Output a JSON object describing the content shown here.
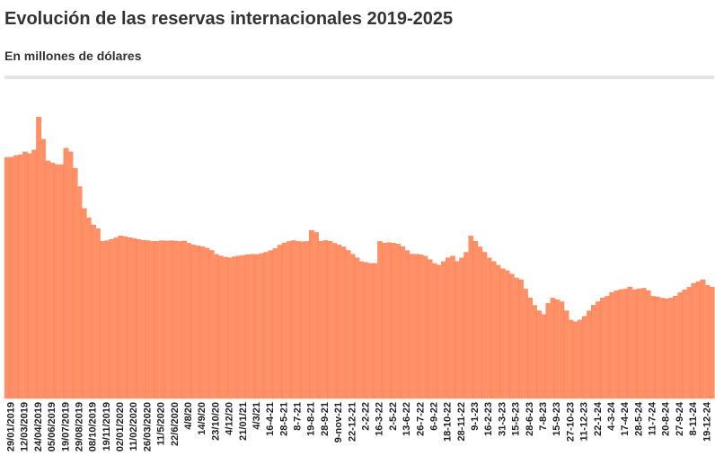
{
  "chart_data": {
    "type": "bar",
    "title": "Evolución de las reservas internacionales 2019-2025",
    "subtitle": "En millones de dólares",
    "color": "#ff8f66",
    "ylim": [
      0,
      80000
    ],
    "categories": [
      null,
      "29/01/2019",
      null,
      null,
      "12/03/2019",
      null,
      null,
      "24/04/2019",
      null,
      null,
      "05/06/2019",
      null,
      null,
      "19/07/2019",
      null,
      null,
      "29/08/2019",
      null,
      null,
      "08/10/2019",
      null,
      null,
      "19/11/2019",
      null,
      null,
      "02/01/2020",
      null,
      null,
      "11/02/2020",
      null,
      null,
      "26/03/2020",
      null,
      null,
      "11/5/2020",
      null,
      null,
      "22/6/2020",
      null,
      null,
      "4/8/20",
      null,
      null,
      "14/9/20",
      null,
      null,
      "23/10/20",
      null,
      null,
      "4/12/20",
      null,
      null,
      "21/01/21",
      null,
      null,
      "4/3/21",
      null,
      null,
      "16-4-21",
      null,
      null,
      "28-5-21",
      null,
      null,
      "8-7-21",
      null,
      null,
      "19-8-21",
      null,
      null,
      "28-9-21",
      null,
      null,
      "9-nov-21",
      null,
      null,
      "22-12-21",
      null,
      null,
      "2-2-22",
      null,
      null,
      "16-3-22",
      null,
      null,
      "2-5-22",
      null,
      null,
      "13-6-22",
      null,
      null,
      "26-7-22",
      null,
      null,
      "6-9-22",
      null,
      null,
      "18-10-22",
      null,
      null,
      "28-11-22",
      null,
      null,
      "9-1-23",
      null,
      null,
      "16-2-23",
      null,
      null,
      "31-3-23",
      null,
      null,
      "15-5-23",
      null,
      null,
      "28-6-23",
      null,
      null,
      "7-8-23",
      null,
      null,
      "15-9-23",
      null,
      null,
      "27-10-23",
      null,
      null,
      "11-12-23",
      null,
      null,
      "22-1-24",
      null,
      null,
      "4-3-24",
      null,
      null,
      "17-4-24",
      null,
      null,
      "28-5-24",
      null,
      null,
      "11-7-24",
      null,
      null,
      "20-8-24",
      null,
      null,
      "27-9-24",
      null,
      null,
      "8-11-24",
      null,
      null,
      "19-12-24",
      null
    ],
    "values": [
      66000,
      66000,
      66500,
      66700,
      67500,
      67000,
      68000,
      77000,
      71000,
      65000,
      64500,
      64000,
      64000,
      68500,
      67500,
      63000,
      58000,
      52000,
      49500,
      47500,
      46500,
      43000,
      43200,
      43500,
      44000,
      44500,
      44300,
      44000,
      43800,
      43500,
      43300,
      43200,
      43000,
      43000,
      43200,
      43100,
      43200,
      43100,
      43000,
      43100,
      42500,
      42000,
      41800,
      41500,
      41200,
      40500,
      39500,
      39000,
      38700,
      38500,
      38800,
      39000,
      39200,
      39300,
      39500,
      39400,
      39700,
      40000,
      40500,
      41000,
      42000,
      42500,
      43000,
      43200,
      43000,
      42900,
      43000,
      46000,
      45500,
      43000,
      43300,
      43000,
      42500,
      42000,
      41500,
      40500,
      39500,
      38500,
      37500,
      37200,
      37000,
      37000,
      43000,
      42500,
      42700,
      42500,
      42300,
      41500,
      40500,
      39500,
      39500,
      39300,
      39000,
      38000,
      37000,
      36500,
      37500,
      38500,
      39000,
      37500,
      38500,
      40000,
      44500,
      43000,
      41500,
      40000,
      38500,
      37500,
      36500,
      35500,
      35000,
      34000,
      33000,
      32500,
      30000,
      27500,
      25500,
      24000,
      23000,
      26000,
      27500,
      27000,
      26500,
      24000,
      21500,
      21000,
      21500,
      22500,
      24000,
      25500,
      26500,
      27500,
      28000,
      29000,
      29500,
      29800,
      30000,
      30500,
      29800,
      30000,
      30200,
      29500,
      28000,
      27800,
      27500,
      27300,
      27500,
      28000,
      29000,
      29700,
      30500,
      31500,
      32000,
      32500,
      31000,
      30500
    ]
  }
}
